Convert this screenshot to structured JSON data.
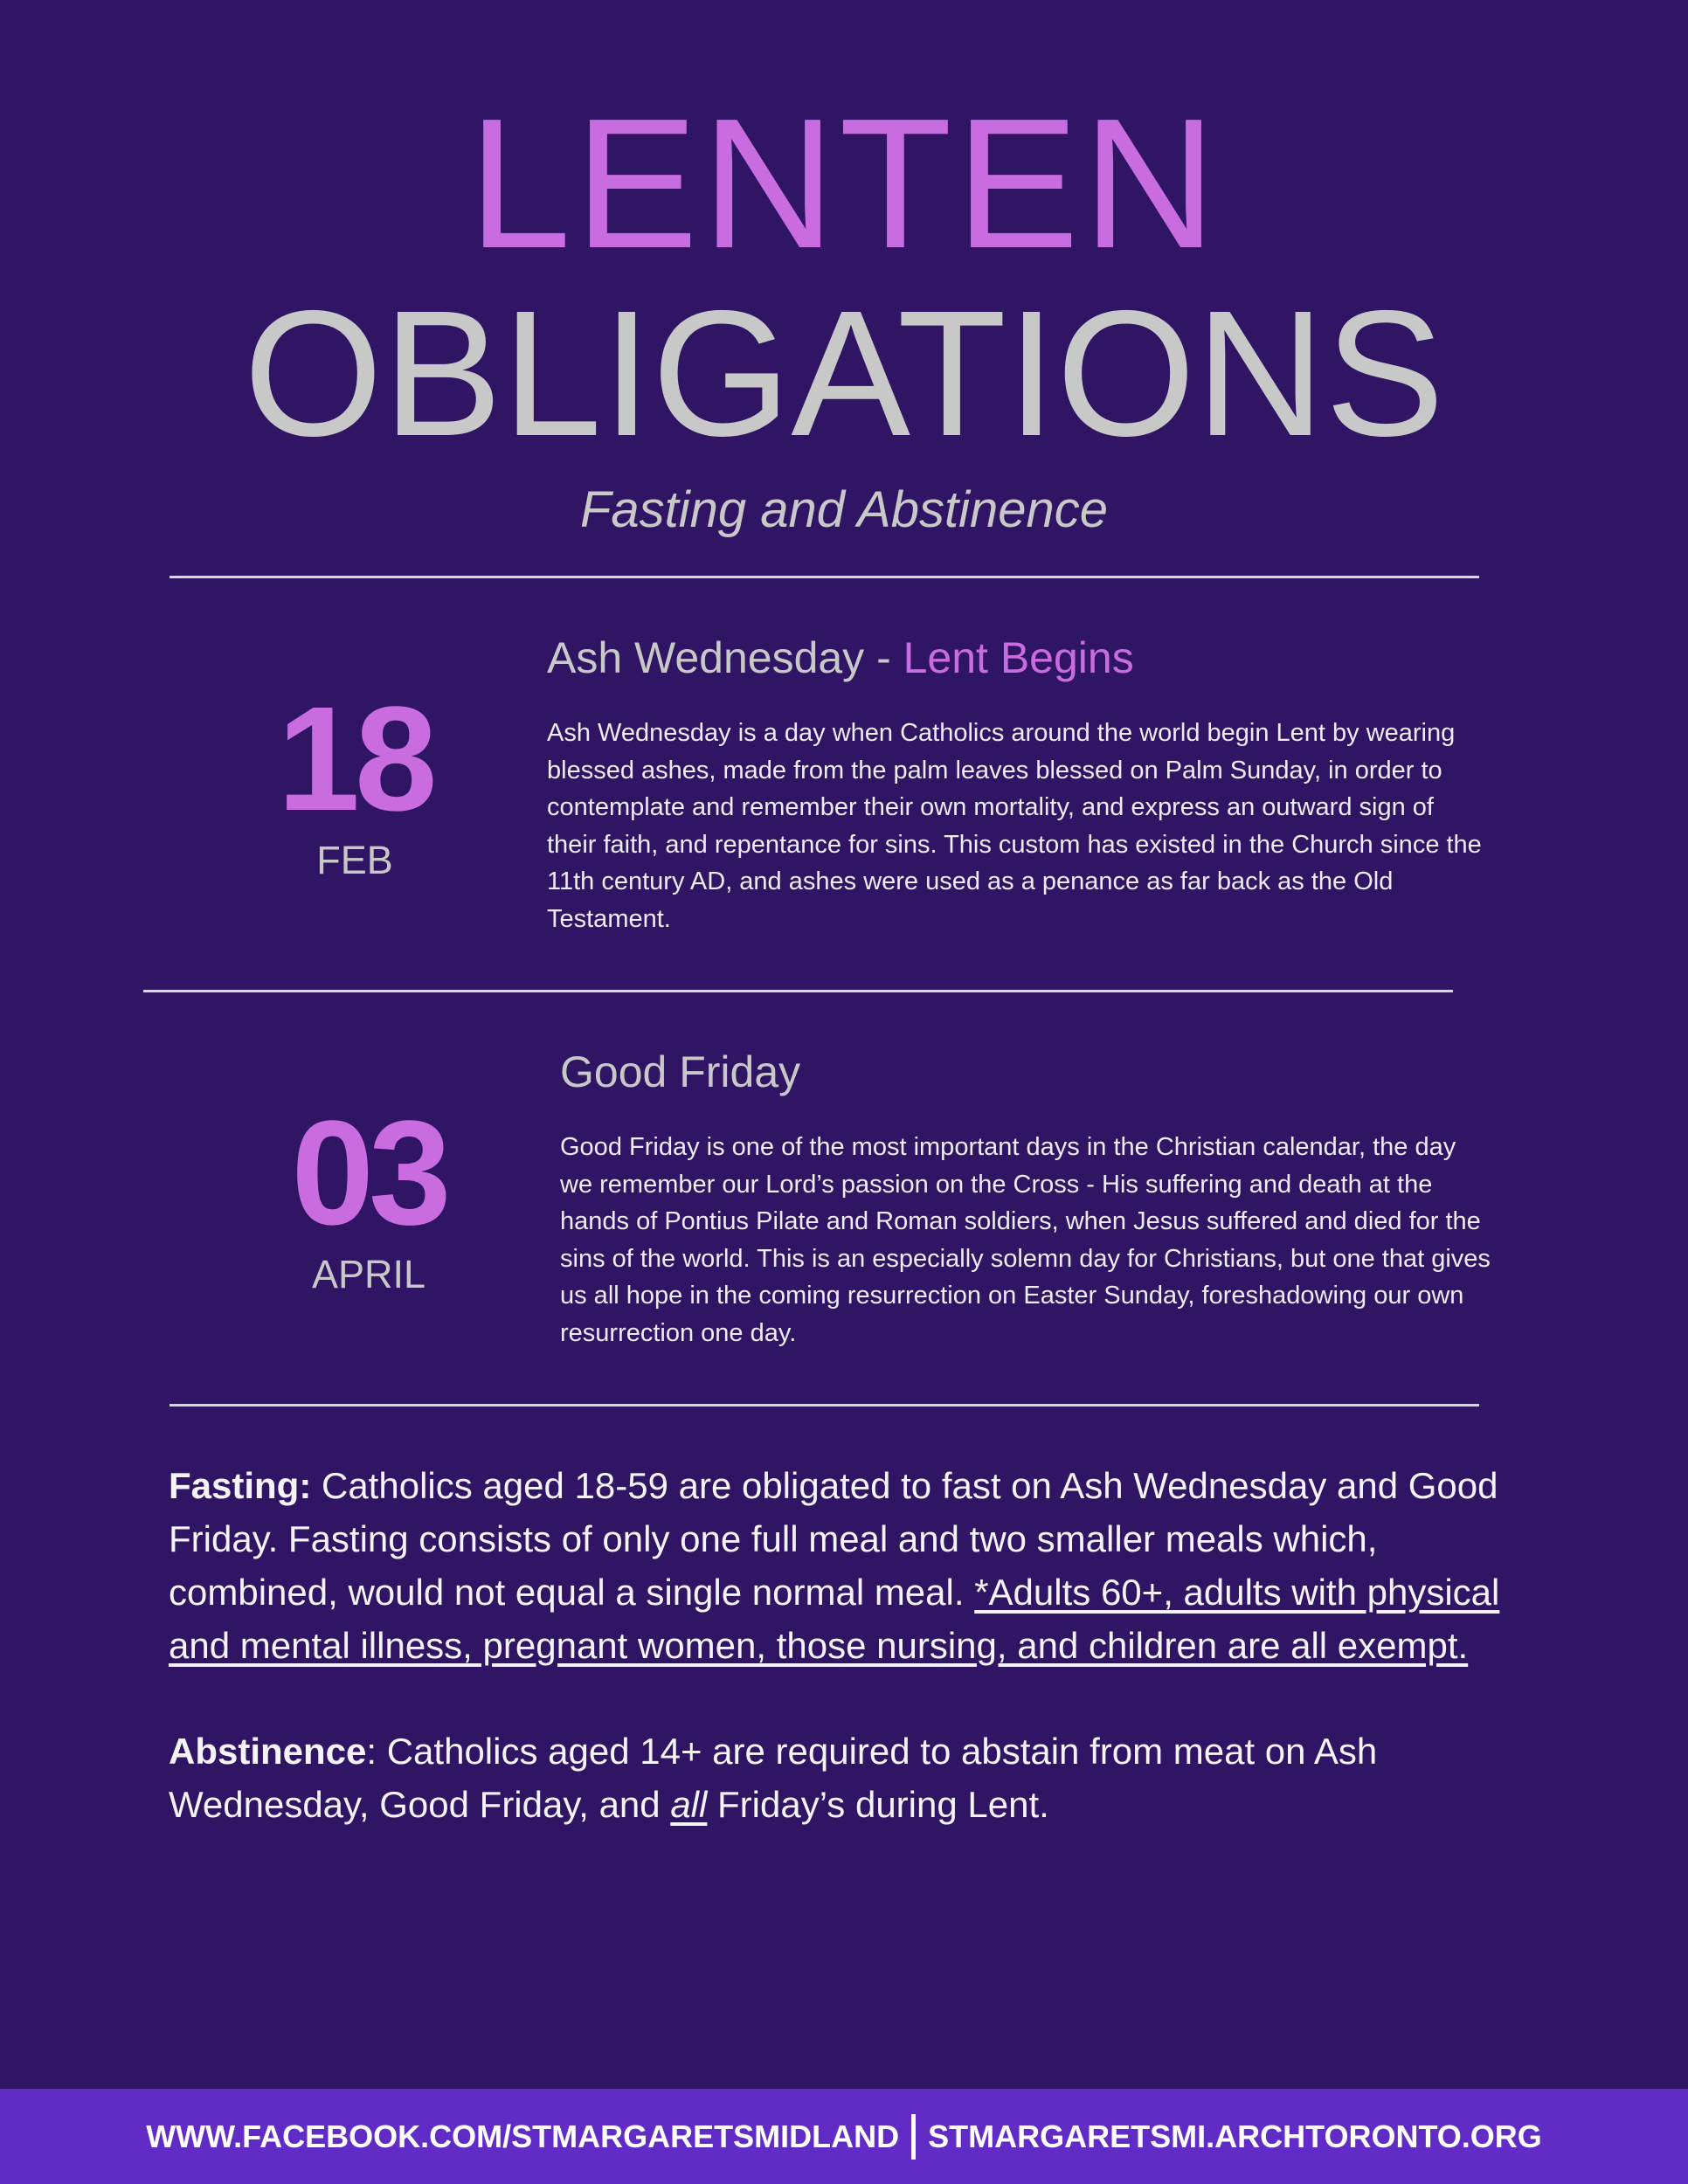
{
  "header": {
    "title_line1": "LENTEN",
    "title_line2": "OBLIGATIONS",
    "subtitle": "Fasting and Abstinence"
  },
  "events": [
    {
      "day": "18",
      "month": "FEB",
      "title": "Ash Wednesday - ",
      "title_accent": "Lent Begins",
      "description": "Ash Wednesday is a day when Catholics around the world begin Lent by wearing blessed ashes, made from the palm leaves blessed on Palm Sunday, in order to contemplate and remember their own mortality, and express an outward sign of their faith, and repentance for sins. This custom has existed in the Church since the 11th century AD, and ashes were used as a penance as far back as the Old Testament."
    },
    {
      "day": "03",
      "month": "APRIL",
      "title": "Good Friday",
      "description": "Good Friday is one of the most important days in the Christian calendar, the day we remember our Lord’s passion on the Cross - His suffering and death at the hands of Pontius Pilate and Roman soldiers, when Jesus suffered and died for the sins of the world. This is an especially solemn day for Christians, but one that gives us all hope in the coming resurrection on Easter Sunday, foreshadowing our own resurrection one day."
    }
  ],
  "fasting": {
    "label": "Fasting:",
    "text": " Catholics aged 18-59 are obligated to fast on Ash Wednesday and Good Friday. Fasting consists of only one full meal and two smaller meals which, combined, would not equal a single normal meal. ",
    "exemption": "*Adults 60+, adults with physical and mental illness, pregnant women, those nursing, and children are all exempt."
  },
  "abstinence": {
    "label": "Abstinence",
    "text_before": ": Catholics aged 14+ are required to abstain from meat on Ash Wednesday, Good Friday, and ",
    "emphasis": "all",
    "text_after": " Friday’s during Lent."
  },
  "footer": {
    "facebook": "WWW.FACEBOOK.COM/STMARGARETSMIDLAND",
    "website": "STMARGARETSMI.ARCHTORONTO.ORG"
  },
  "colors": {
    "background": "#2f1563",
    "accent": "#c86ce0",
    "grey_text": "#c8c8c8",
    "footer_bg": "#612cc6"
  }
}
